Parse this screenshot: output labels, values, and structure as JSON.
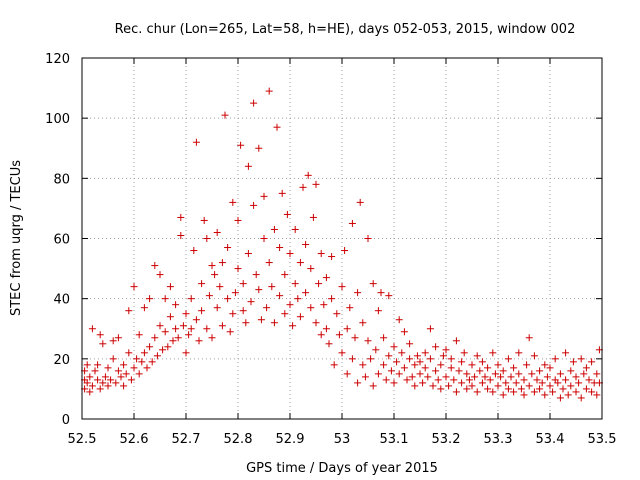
{
  "chart_data": {
    "type": "scatter",
    "title": "Rec. chur (Lon=265, Lat=58, h=HE), days 052-053, 2015, window 002",
    "xlabel": "GPS time / Days of year 2015",
    "ylabel": "STEC from uqrg / TECUs",
    "xlim": [
      52.5,
      53.5
    ],
    "ylim": [
      0,
      120
    ],
    "xticks": [
      "52.5",
      "52.6",
      "52.7",
      "52.8",
      "52.9",
      "53",
      "53.1",
      "53.2",
      "53.3",
      "53.4",
      "53.5"
    ],
    "yticks": [
      "0",
      "20",
      "40",
      "60",
      "80",
      "100",
      "120"
    ],
    "grid": true,
    "marker": "+",
    "color": "#cc0000",
    "points": [
      [
        52.505,
        10
      ],
      [
        52.505,
        13
      ],
      [
        52.505,
        16
      ],
      [
        52.51,
        12
      ],
      [
        52.51,
        18
      ],
      [
        52.515,
        9
      ],
      [
        52.515,
        14
      ],
      [
        52.52,
        11
      ],
      [
        52.52,
        30
      ],
      [
        52.525,
        16
      ],
      [
        52.53,
        13
      ],
      [
        52.53,
        18
      ],
      [
        52.535,
        28
      ],
      [
        52.535,
        10
      ],
      [
        52.54,
        25
      ],
      [
        52.54,
        12
      ],
      [
        52.545,
        14
      ],
      [
        52.55,
        11
      ],
      [
        52.55,
        17
      ],
      [
        52.555,
        13
      ],
      [
        52.56,
        26
      ],
      [
        52.56,
        20
      ],
      [
        52.565,
        12
      ],
      [
        52.57,
        16
      ],
      [
        52.57,
        27
      ],
      [
        52.575,
        14
      ],
      [
        52.58,
        18
      ],
      [
        52.58,
        11
      ],
      [
        52.585,
        15
      ],
      [
        52.59,
        22
      ],
      [
        52.59,
        36
      ],
      [
        52.595,
        13
      ],
      [
        52.6,
        17
      ],
      [
        52.6,
        44
      ],
      [
        52.605,
        20
      ],
      [
        52.61,
        28
      ],
      [
        52.61,
        15
      ],
      [
        52.615,
        19
      ],
      [
        52.62,
        22
      ],
      [
        52.62,
        37
      ],
      [
        52.625,
        17
      ],
      [
        52.63,
        24
      ],
      [
        52.63,
        40
      ],
      [
        52.635,
        19
      ],
      [
        52.64,
        27
      ],
      [
        52.64,
        51
      ],
      [
        52.645,
        21
      ],
      [
        52.65,
        31
      ],
      [
        52.65,
        48
      ],
      [
        52.655,
        23
      ],
      [
        52.66,
        29
      ],
      [
        52.66,
        40
      ],
      [
        52.665,
        24
      ],
      [
        52.67,
        34
      ],
      [
        52.67,
        44
      ],
      [
        52.675,
        26
      ],
      [
        52.68,
        30
      ],
      [
        52.68,
        38
      ],
      [
        52.685,
        27
      ],
      [
        52.69,
        67
      ],
      [
        52.69,
        61
      ],
      [
        52.695,
        31
      ],
      [
        52.7,
        35
      ],
      [
        52.7,
        22
      ],
      [
        52.705,
        28
      ],
      [
        52.71,
        40
      ],
      [
        52.71,
        30
      ],
      [
        52.715,
        56
      ],
      [
        52.72,
        92
      ],
      [
        52.72,
        33
      ],
      [
        52.725,
        26
      ],
      [
        52.73,
        45
      ],
      [
        52.73,
        36
      ],
      [
        52.735,
        66
      ],
      [
        52.74,
        30
      ],
      [
        52.74,
        60
      ],
      [
        52.745,
        41
      ],
      [
        52.75,
        51
      ],
      [
        52.75,
        27
      ],
      [
        52.755,
        48
      ],
      [
        52.76,
        37
      ],
      [
        52.76,
        62
      ],
      [
        52.765,
        44
      ],
      [
        52.77,
        31
      ],
      [
        52.77,
        52
      ],
      [
        52.775,
        101
      ],
      [
        52.78,
        40
      ],
      [
        52.78,
        57
      ],
      [
        52.785,
        29
      ],
      [
        52.79,
        72
      ],
      [
        52.79,
        35
      ],
      [
        52.795,
        42
      ],
      [
        52.8,
        66
      ],
      [
        52.8,
        50
      ],
      [
        52.805,
        91
      ],
      [
        52.81,
        36
      ],
      [
        52.81,
        45
      ],
      [
        52.815,
        32
      ],
      [
        52.82,
        84
      ],
      [
        52.82,
        55
      ],
      [
        52.825,
        39
      ],
      [
        52.83,
        105
      ],
      [
        52.83,
        71
      ],
      [
        52.835,
        48
      ],
      [
        52.84,
        90
      ],
      [
        52.84,
        43
      ],
      [
        52.845,
        33
      ],
      [
        52.85,
        60
      ],
      [
        52.85,
        74
      ],
      [
        52.855,
        37
      ],
      [
        52.86,
        109
      ],
      [
        52.86,
        52
      ],
      [
        52.865,
        44
      ],
      [
        52.87,
        32
      ],
      [
        52.87,
        63
      ],
      [
        52.875,
        97
      ],
      [
        52.88,
        41
      ],
      [
        52.88,
        57
      ],
      [
        52.885,
        75
      ],
      [
        52.89,
        35
      ],
      [
        52.89,
        48
      ],
      [
        52.895,
        68
      ],
      [
        52.9,
        38
      ],
      [
        52.9,
        55
      ],
      [
        52.905,
        31
      ],
      [
        52.91,
        63
      ],
      [
        52.91,
        45
      ],
      [
        52.915,
        40
      ],
      [
        52.92,
        52
      ],
      [
        52.92,
        34
      ],
      [
        52.925,
        77
      ],
      [
        52.93,
        58
      ],
      [
        52.93,
        42
      ],
      [
        52.935,
        81
      ],
      [
        52.94,
        37
      ],
      [
        52.94,
        50
      ],
      [
        52.945,
        67
      ],
      [
        52.95,
        32
      ],
      [
        52.95,
        78
      ],
      [
        52.955,
        45
      ],
      [
        52.96,
        28
      ],
      [
        52.96,
        55
      ],
      [
        52.965,
        38
      ],
      [
        52.97,
        30
      ],
      [
        52.97,
        47
      ],
      [
        52.975,
        25
      ],
      [
        52.98,
        40
      ],
      [
        52.98,
        54
      ],
      [
        52.985,
        18
      ],
      [
        52.99,
        35
      ],
      [
        52.995,
        28
      ],
      [
        53.0,
        44
      ],
      [
        53.0,
        22
      ],
      [
        53.005,
        56
      ],
      [
        53.01,
        30
      ],
      [
        53.01,
        15
      ],
      [
        53.015,
        37
      ],
      [
        53.02,
        65
      ],
      [
        53.02,
        20
      ],
      [
        53.025,
        27
      ],
      [
        53.03,
        12
      ],
      [
        53.03,
        42
      ],
      [
        53.035,
        72
      ],
      [
        53.04,
        18
      ],
      [
        53.04,
        32
      ],
      [
        53.045,
        14
      ],
      [
        53.05,
        26
      ],
      [
        53.05,
        60
      ],
      [
        53.055,
        20
      ],
      [
        53.06,
        45
      ],
      [
        53.06,
        11
      ],
      [
        53.065,
        23
      ],
      [
        53.07,
        36
      ],
      [
        53.07,
        15
      ],
      [
        53.075,
        42
      ],
      [
        53.08,
        18
      ],
      [
        53.08,
        27
      ],
      [
        53.085,
        13
      ],
      [
        53.09,
        21
      ],
      [
        53.09,
        41
      ],
      [
        53.095,
        16
      ],
      [
        53.1,
        24
      ],
      [
        53.1,
        12
      ],
      [
        53.105,
        19
      ],
      [
        53.11,
        33
      ],
      [
        53.11,
        15
      ],
      [
        53.115,
        22
      ],
      [
        53.12,
        17
      ],
      [
        53.12,
        29
      ],
      [
        53.125,
        13
      ],
      [
        53.13,
        20
      ],
      [
        53.13,
        25
      ],
      [
        53.135,
        14
      ],
      [
        53.14,
        18
      ],
      [
        53.14,
        11
      ],
      [
        53.145,
        21
      ],
      [
        53.15,
        15
      ],
      [
        53.15,
        19
      ],
      [
        53.155,
        12
      ],
      [
        53.16,
        22
      ],
      [
        53.16,
        17
      ],
      [
        53.165,
        14
      ],
      [
        53.17,
        20
      ],
      [
        53.17,
        30
      ],
      [
        53.175,
        11
      ],
      [
        53.18,
        16
      ],
      [
        53.18,
        24
      ],
      [
        53.185,
        13
      ],
      [
        53.19,
        18
      ],
      [
        53.19,
        10
      ],
      [
        53.195,
        21
      ],
      [
        53.2,
        14
      ],
      [
        53.2,
        23
      ],
      [
        53.205,
        11
      ],
      [
        53.21,
        17
      ],
      [
        53.21,
        20
      ],
      [
        53.215,
        13
      ],
      [
        53.22,
        26
      ],
      [
        53.22,
        9
      ],
      [
        53.225,
        16
      ],
      [
        53.23,
        12
      ],
      [
        53.23,
        19
      ],
      [
        53.235,
        22
      ],
      [
        53.24,
        10
      ],
      [
        53.24,
        15
      ],
      [
        53.245,
        13
      ],
      [
        53.25,
        18
      ],
      [
        53.25,
        11
      ],
      [
        53.255,
        14
      ],
      [
        53.26,
        21
      ],
      [
        53.26,
        9
      ],
      [
        53.265,
        16
      ],
      [
        53.27,
        12
      ],
      [
        53.27,
        19
      ],
      [
        53.275,
        14
      ],
      [
        53.28,
        10
      ],
      [
        53.28,
        17
      ],
      [
        53.285,
        13
      ],
      [
        53.29,
        22
      ],
      [
        53.29,
        9
      ],
      [
        53.295,
        15
      ],
      [
        53.3,
        11
      ],
      [
        53.3,
        18
      ],
      [
        53.305,
        14
      ],
      [
        53.31,
        8
      ],
      [
        53.31,
        16
      ],
      [
        53.315,
        12
      ],
      [
        53.32,
        20
      ],
      [
        53.32,
        10
      ],
      [
        53.325,
        14
      ],
      [
        53.33,
        9
      ],
      [
        53.33,
        17
      ],
      [
        53.335,
        12
      ],
      [
        53.34,
        15
      ],
      [
        53.34,
        22
      ],
      [
        53.345,
        10
      ],
      [
        53.35,
        13
      ],
      [
        53.35,
        8
      ],
      [
        53.355,
        18
      ],
      [
        53.36,
        27
      ],
      [
        53.36,
        11
      ],
      [
        53.365,
        15
      ],
      [
        53.37,
        9
      ],
      [
        53.37,
        21
      ],
      [
        53.375,
        13
      ],
      [
        53.38,
        10
      ],
      [
        53.38,
        16
      ],
      [
        53.385,
        12
      ],
      [
        53.39,
        8
      ],
      [
        53.39,
        18
      ],
      [
        53.395,
        14
      ],
      [
        53.4,
        11
      ],
      [
        53.4,
        17
      ],
      [
        53.405,
        9
      ],
      [
        53.41,
        13
      ],
      [
        53.41,
        20
      ],
      [
        53.415,
        12
      ],
      [
        53.42,
        7
      ],
      [
        53.42,
        15
      ],
      [
        53.425,
        10
      ],
      [
        53.43,
        22
      ],
      [
        53.43,
        13
      ],
      [
        53.435,
        8
      ],
      [
        53.44,
        16
      ],
      [
        53.44,
        11
      ],
      [
        53.445,
        19
      ],
      [
        53.45,
        9
      ],
      [
        53.45,
        14
      ],
      [
        53.455,
        12
      ],
      [
        53.46,
        20
      ],
      [
        53.46,
        7
      ],
      [
        53.465,
        15
      ],
      [
        53.47,
        10
      ],
      [
        53.47,
        17
      ],
      [
        53.475,
        13
      ],
      [
        53.48,
        9
      ],
      [
        53.48,
        19
      ],
      [
        53.485,
        12
      ],
      [
        53.49,
        15
      ],
      [
        53.49,
        8
      ],
      [
        53.495,
        23
      ],
      [
        53.495,
        12
      ]
    ]
  }
}
